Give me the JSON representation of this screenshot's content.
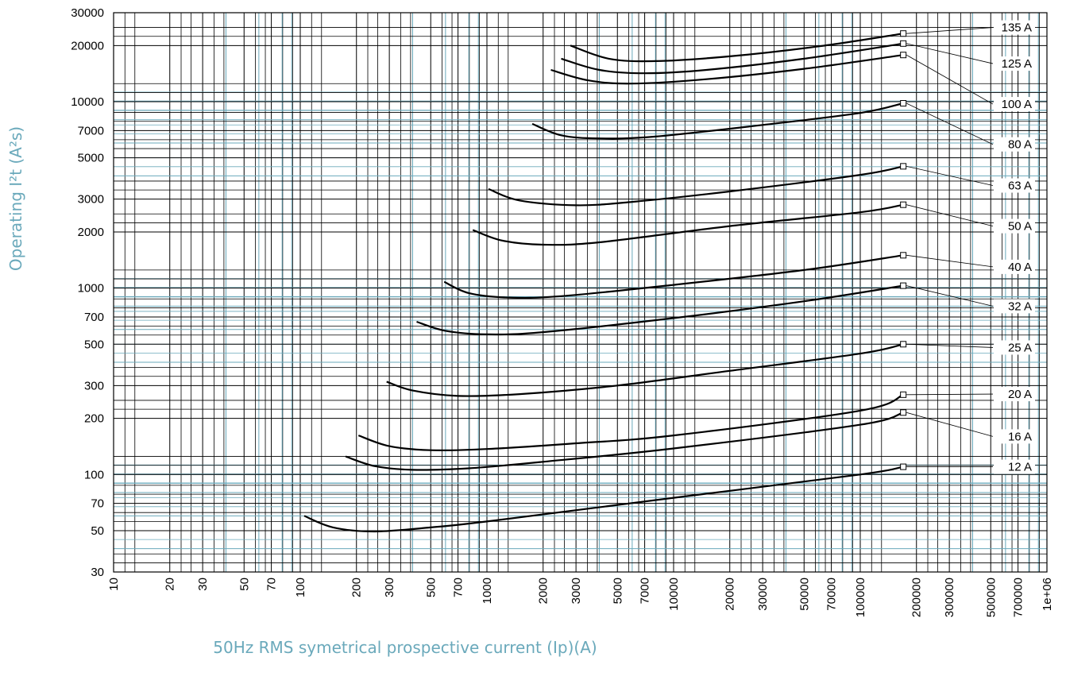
{
  "chart_data": {
    "type": "line",
    "title": "",
    "xlabel": "50Hz RMS symetrical prospective current (Ip)(A)",
    "ylabel": "Operating I²t (A²s)",
    "xscale": "log",
    "yscale": "log",
    "xlim": [
      10,
      1000000
    ],
    "ylim": [
      30,
      30000
    ],
    "grid": true,
    "grid_colors": {
      "major": "#000000",
      "minor": "#6aa9bb"
    },
    "line_color": "#000000",
    "x_ticks": [
      {
        "v": 10,
        "label": "10"
      },
      {
        "v": 20,
        "label": "20"
      },
      {
        "v": 30,
        "label": "30"
      },
      {
        "v": 50,
        "label": "50"
      },
      {
        "v": 70,
        "label": "70"
      },
      {
        "v": 100,
        "label": "100"
      },
      {
        "v": 200,
        "label": "200"
      },
      {
        "v": 300,
        "label": "300"
      },
      {
        "v": 500,
        "label": "500"
      },
      {
        "v": 700,
        "label": "700"
      },
      {
        "v": 1000,
        "label": "1000"
      },
      {
        "v": 2000,
        "label": "2000"
      },
      {
        "v": 3000,
        "label": "3000"
      },
      {
        "v": 5000,
        "label": "5000"
      },
      {
        "v": 7000,
        "label": "7000"
      },
      {
        "v": 10000,
        "label": "10000"
      },
      {
        "v": 20000,
        "label": "20000"
      },
      {
        "v": 30000,
        "label": "30000"
      },
      {
        "v": 50000,
        "label": "50000"
      },
      {
        "v": 70000,
        "label": "70000"
      },
      {
        "v": 100000,
        "label": "100000"
      },
      {
        "v": 200000,
        "label": "200000"
      },
      {
        "v": 300000,
        "label": "300000"
      },
      {
        "v": 500000,
        "label": "500000"
      },
      {
        "v": 700000,
        "label": "700000"
      },
      {
        "v": 1000000,
        "label": "1e+06"
      }
    ],
    "y_ticks": [
      {
        "v": 30,
        "label": "30"
      },
      {
        "v": 50,
        "label": "50"
      },
      {
        "v": 70,
        "label": "70"
      },
      {
        "v": 100,
        "label": "100"
      },
      {
        "v": 200,
        "label": "200"
      },
      {
        "v": 300,
        "label": "300"
      },
      {
        "v": 500,
        "label": "500"
      },
      {
        "v": 700,
        "label": "700"
      },
      {
        "v": 1000,
        "label": "1000"
      },
      {
        "v": 2000,
        "label": "2000"
      },
      {
        "v": 3000,
        "label": "3000"
      },
      {
        "v": 5000,
        "label": "5000"
      },
      {
        "v": 7000,
        "label": "7000"
      },
      {
        "v": 10000,
        "label": "10000"
      },
      {
        "v": 20000,
        "label": "20000"
      },
      {
        "v": 30000,
        "label": "30000"
      }
    ],
    "series": [
      {
        "name": "12 A",
        "label_y": 110,
        "points": [
          [
            105,
            60
          ],
          [
            150,
            52
          ],
          [
            250,
            49.5
          ],
          [
            500,
            52
          ],
          [
            1000,
            56
          ],
          [
            10000,
            75
          ],
          [
            100000,
            100
          ],
          [
            170000,
            110
          ]
        ]
      },
      {
        "name": "16 A",
        "label_y": 160,
        "points": [
          [
            175,
            125
          ],
          [
            250,
            111
          ],
          [
            400,
            106
          ],
          [
            800,
            108
          ],
          [
            2000,
            117
          ],
          [
            10000,
            138
          ],
          [
            100000,
            185
          ],
          [
            170000,
            215
          ]
        ]
      },
      {
        "name": "20 A",
        "label_y": 270,
        "points": [
          [
            205,
            162
          ],
          [
            300,
            142
          ],
          [
            500,
            135
          ],
          [
            1000,
            137
          ],
          [
            3000,
            147
          ],
          [
            10000,
            162
          ],
          [
            100000,
            220
          ],
          [
            170000,
            268
          ]
        ]
      },
      {
        "name": "25 A",
        "label_y": 480,
        "points": [
          [
            290,
            315
          ],
          [
            400,
            282
          ],
          [
            700,
            264
          ],
          [
            1500,
            270
          ],
          [
            5000,
            300
          ],
          [
            20000,
            360
          ],
          [
            100000,
            445
          ],
          [
            170000,
            500
          ]
        ]
      },
      {
        "name": "32 A",
        "label_y": 800,
        "points": [
          [
            420,
            660
          ],
          [
            600,
            590
          ],
          [
            1000,
            565
          ],
          [
            2000,
            580
          ],
          [
            10000,
            690
          ],
          [
            50000,
            850
          ],
          [
            170000,
            1030
          ]
        ]
      },
      {
        "name": "40 A",
        "label_y": 1300,
        "points": [
          [
            590,
            1080
          ],
          [
            800,
            940
          ],
          [
            1300,
            890
          ],
          [
            2500,
            905
          ],
          [
            10000,
            1040
          ],
          [
            50000,
            1250
          ],
          [
            170000,
            1500
          ]
        ]
      },
      {
        "name": "50 A",
        "label_y": 2150,
        "points": [
          [
            840,
            2050
          ],
          [
            1200,
            1800
          ],
          [
            2000,
            1710
          ],
          [
            4000,
            1760
          ],
          [
            20000,
            2150
          ],
          [
            100000,
            2550
          ],
          [
            170000,
            2800
          ]
        ]
      },
      {
        "name": "63 A",
        "label_y": 3550,
        "points": [
          [
            1020,
            3400
          ],
          [
            1500,
            2950
          ],
          [
            3000,
            2780
          ],
          [
            6000,
            2900
          ],
          [
            20000,
            3300
          ],
          [
            100000,
            4050
          ],
          [
            170000,
            4500
          ]
        ]
      },
      {
        "name": "80 A",
        "label_y": 5900,
        "points": [
          [
            1750,
            7600
          ],
          [
            2500,
            6600
          ],
          [
            4000,
            6350
          ],
          [
            8000,
            6500
          ],
          [
            30000,
            7500
          ],
          [
            100000,
            8700
          ],
          [
            170000,
            9800
          ]
        ]
      },
      {
        "name": "100 A",
        "label_y": 9700,
        "points": [
          [
            2200,
            14800
          ],
          [
            3500,
            13000
          ],
          [
            6000,
            12500
          ],
          [
            15000,
            13200
          ],
          [
            50000,
            15000
          ],
          [
            170000,
            17800
          ]
        ]
      },
      {
        "name": "125 A",
        "label_y": 16000,
        "points": [
          [
            2500,
            17000
          ],
          [
            4000,
            14800
          ],
          [
            7000,
            14200
          ],
          [
            15000,
            14800
          ],
          [
            50000,
            17000
          ],
          [
            170000,
            20500
          ]
        ]
      },
      {
        "name": "135 A",
        "label_y": 25000,
        "points": [
          [
            2800,
            20000
          ],
          [
            4500,
            17000
          ],
          [
            8000,
            16500
          ],
          [
            20000,
            17500
          ],
          [
            60000,
            19800
          ],
          [
            170000,
            23200
          ]
        ]
      }
    ]
  }
}
